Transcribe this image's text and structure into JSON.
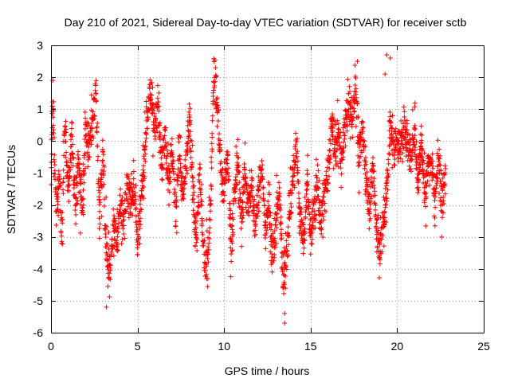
{
  "chart_data": {
    "type": "scatter",
    "title": "Day 210 of 2021, Sidereal Day-to-day VTEC variation (SDTVAR) for receiver sctb",
    "xlabel": "GPS time / hours",
    "ylabel": "SDTVAR / TECUs",
    "xlim": [
      0,
      25
    ],
    "ylim": [
      -6,
      3
    ],
    "x_ticks": [
      0,
      5,
      10,
      15,
      20,
      25
    ],
    "y_ticks": [
      -6,
      -5,
      -4,
      -3,
      -2,
      -1,
      0,
      1,
      2,
      3
    ],
    "x_tick_labels": [
      "0",
      "5",
      "10",
      "15",
      "20",
      "25"
    ],
    "y_tick_labels": [
      "-6",
      "-5",
      "-4",
      "-3",
      "-2",
      "-1",
      "0",
      "1",
      "2",
      "3"
    ],
    "grid": true,
    "marker": "plus",
    "series": [
      {
        "name": "SDTVAR",
        "color": "#ff0000",
        "x_range": [
          0,
          22.8
        ],
        "trend": [
          [
            0.0,
            -1.2
          ],
          [
            0.1,
            1.5
          ],
          [
            0.2,
            -0.6
          ],
          [
            0.3,
            -2.4
          ],
          [
            0.5,
            -1.0
          ],
          [
            0.6,
            -3.2
          ],
          [
            0.8,
            0.6
          ],
          [
            1.0,
            -1.6
          ],
          [
            1.2,
            0.2
          ],
          [
            1.4,
            -2.1
          ],
          [
            1.6,
            -0.6
          ],
          [
            1.8,
            -2.2
          ],
          [
            2.0,
            0.4
          ],
          [
            2.2,
            -0.1
          ],
          [
            2.4,
            0.5
          ],
          [
            2.6,
            1.3
          ],
          [
            2.8,
            -2.4
          ],
          [
            3.0,
            -0.4
          ],
          [
            3.2,
            -3.6
          ],
          [
            3.4,
            -4.2
          ],
          [
            3.6,
            -2.5
          ],
          [
            3.8,
            -3.3
          ],
          [
            4.0,
            -1.8
          ],
          [
            4.2,
            -2.6
          ],
          [
            4.4,
            -1.2
          ],
          [
            4.6,
            -2.0
          ],
          [
            4.8,
            -1.3
          ],
          [
            5.0,
            -3.1
          ],
          [
            5.2,
            -2.1
          ],
          [
            5.4,
            -0.4
          ],
          [
            5.6,
            1.1
          ],
          [
            5.8,
            1.4
          ],
          [
            6.0,
            0.3
          ],
          [
            6.2,
            1.2
          ],
          [
            6.4,
            -0.6
          ],
          [
            6.6,
            0.1
          ],
          [
            6.8,
            -1.1
          ],
          [
            7.0,
            -0.4
          ],
          [
            7.2,
            -2.2
          ],
          [
            7.4,
            -0.2
          ],
          [
            7.6,
            -1.8
          ],
          [
            7.8,
            -0.9
          ],
          [
            8.0,
            0.6
          ],
          [
            8.2,
            -1.6
          ],
          [
            8.4,
            -3.1
          ],
          [
            8.6,
            -1.0
          ],
          [
            8.8,
            -3.4
          ],
          [
            9.0,
            -4.0
          ],
          [
            9.2,
            -2.3
          ],
          [
            9.4,
            2.2
          ],
          [
            9.6,
            1.3
          ],
          [
            9.8,
            -0.8
          ],
          [
            10.0,
            -1.6
          ],
          [
            10.2,
            -0.4
          ],
          [
            10.4,
            -3.3
          ],
          [
            10.6,
            -1.7
          ],
          [
            10.8,
            -0.6
          ],
          [
            11.0,
            -2.6
          ],
          [
            11.2,
            -1.1
          ],
          [
            11.4,
            -2.1
          ],
          [
            11.6,
            -1.2
          ],
          [
            11.8,
            -2.6
          ],
          [
            12.0,
            -1.4
          ],
          [
            12.2,
            -0.9
          ],
          [
            12.4,
            -2.8
          ],
          [
            12.6,
            -1.9
          ],
          [
            12.8,
            -3.6
          ],
          [
            13.0,
            -2.4
          ],
          [
            13.2,
            -1.6
          ],
          [
            13.4,
            -4.3
          ],
          [
            13.6,
            -3.6
          ],
          [
            13.8,
            -2.1
          ],
          [
            14.0,
            -1.0
          ],
          [
            14.2,
            -0.2
          ],
          [
            14.4,
            -2.5
          ],
          [
            14.6,
            -3.2
          ],
          [
            14.8,
            -1.3
          ],
          [
            15.0,
            -2.9
          ],
          [
            15.2,
            -2.2
          ],
          [
            15.4,
            -1.2
          ],
          [
            15.6,
            -2.6
          ],
          [
            15.8,
            -1.6
          ],
          [
            16.0,
            -1.1
          ],
          [
            16.2,
            0.6
          ],
          [
            16.4,
            -0.3
          ],
          [
            16.6,
            0.2
          ],
          [
            16.8,
            -0.6
          ],
          [
            17.0,
            0.5
          ],
          [
            17.2,
            1.2
          ],
          [
            17.4,
            0.7
          ],
          [
            17.6,
            1.9
          ],
          [
            17.8,
            -0.6
          ],
          [
            18.0,
            0.4
          ],
          [
            18.2,
            -1.1
          ],
          [
            18.4,
            -2.0
          ],
          [
            18.6,
            -0.8
          ],
          [
            18.8,
            -2.6
          ],
          [
            19.0,
            -3.4
          ],
          [
            19.2,
            -2.6
          ],
          [
            19.4,
            -1.6
          ],
          [
            19.6,
            0.6
          ],
          [
            19.8,
            -0.3
          ],
          [
            20.0,
            0.1
          ],
          [
            20.2,
            -0.2
          ],
          [
            20.4,
            0.4
          ],
          [
            20.6,
            0.0
          ],
          [
            20.8,
            -0.5
          ],
          [
            21.0,
            0.3
          ],
          [
            21.2,
            -1.2
          ],
          [
            21.4,
            -0.1
          ],
          [
            21.6,
            -1.7
          ],
          [
            21.8,
            -0.6
          ],
          [
            22.0,
            -0.8
          ],
          [
            22.2,
            -1.7
          ],
          [
            22.4,
            -0.6
          ],
          [
            22.6,
            -1.6
          ],
          [
            22.8,
            -1.2
          ]
        ],
        "outliers": [
          [
            13.5,
            -5.4
          ],
          [
            13.5,
            -5.7
          ],
          [
            19.6,
            2.6
          ],
          [
            19.4,
            2.7
          ],
          [
            17.7,
            2.5
          ],
          [
            9.5,
            2.3
          ],
          [
            0.1,
            1.9
          ],
          [
            3.2,
            -5.2
          ],
          [
            13.4,
            -4.6
          ],
          [
            19.3,
            2.1
          ]
        ]
      }
    ]
  }
}
